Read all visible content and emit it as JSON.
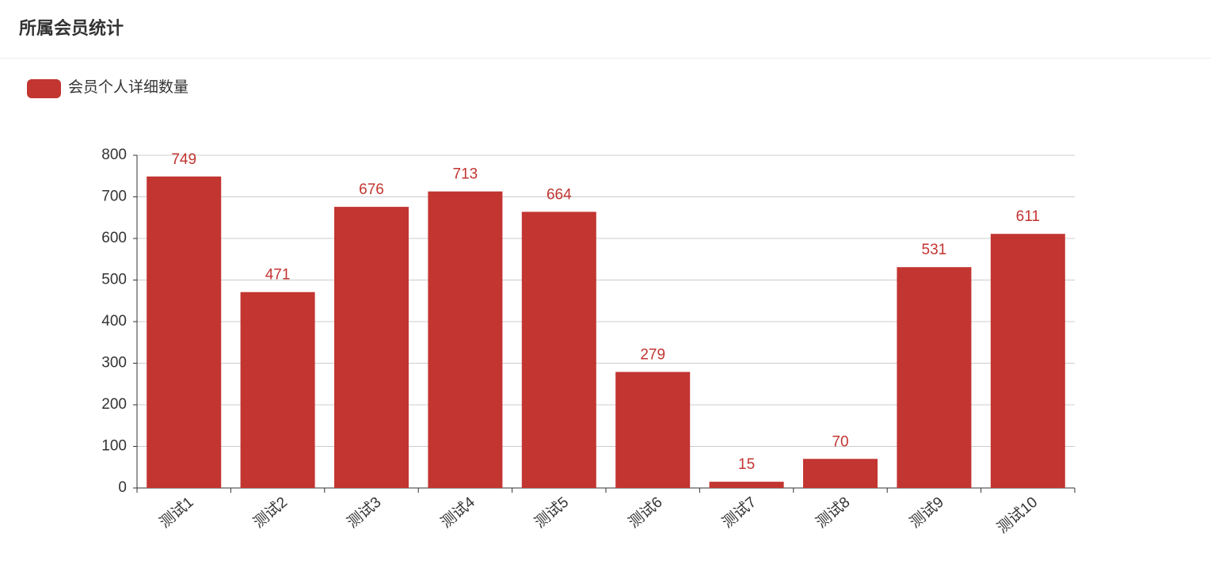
{
  "chart_data": {
    "type": "bar",
    "title": "所属会员统计",
    "series": [
      {
        "name": "会员个人详细数量",
        "color": "#c23531",
        "values": [
          749,
          471,
          676,
          713,
          664,
          279,
          15,
          70,
          531,
          611
        ]
      }
    ],
    "categories": [
      "测试1",
      "测试2",
      "测试3",
      "测试4",
      "测试5",
      "测试6",
      "测试7",
      "测试8",
      "测试9",
      "测试10"
    ],
    "ylim": [
      0,
      800
    ],
    "yticks": [
      0,
      100,
      200,
      300,
      400,
      500,
      600,
      700,
      800
    ],
    "grid": true
  }
}
